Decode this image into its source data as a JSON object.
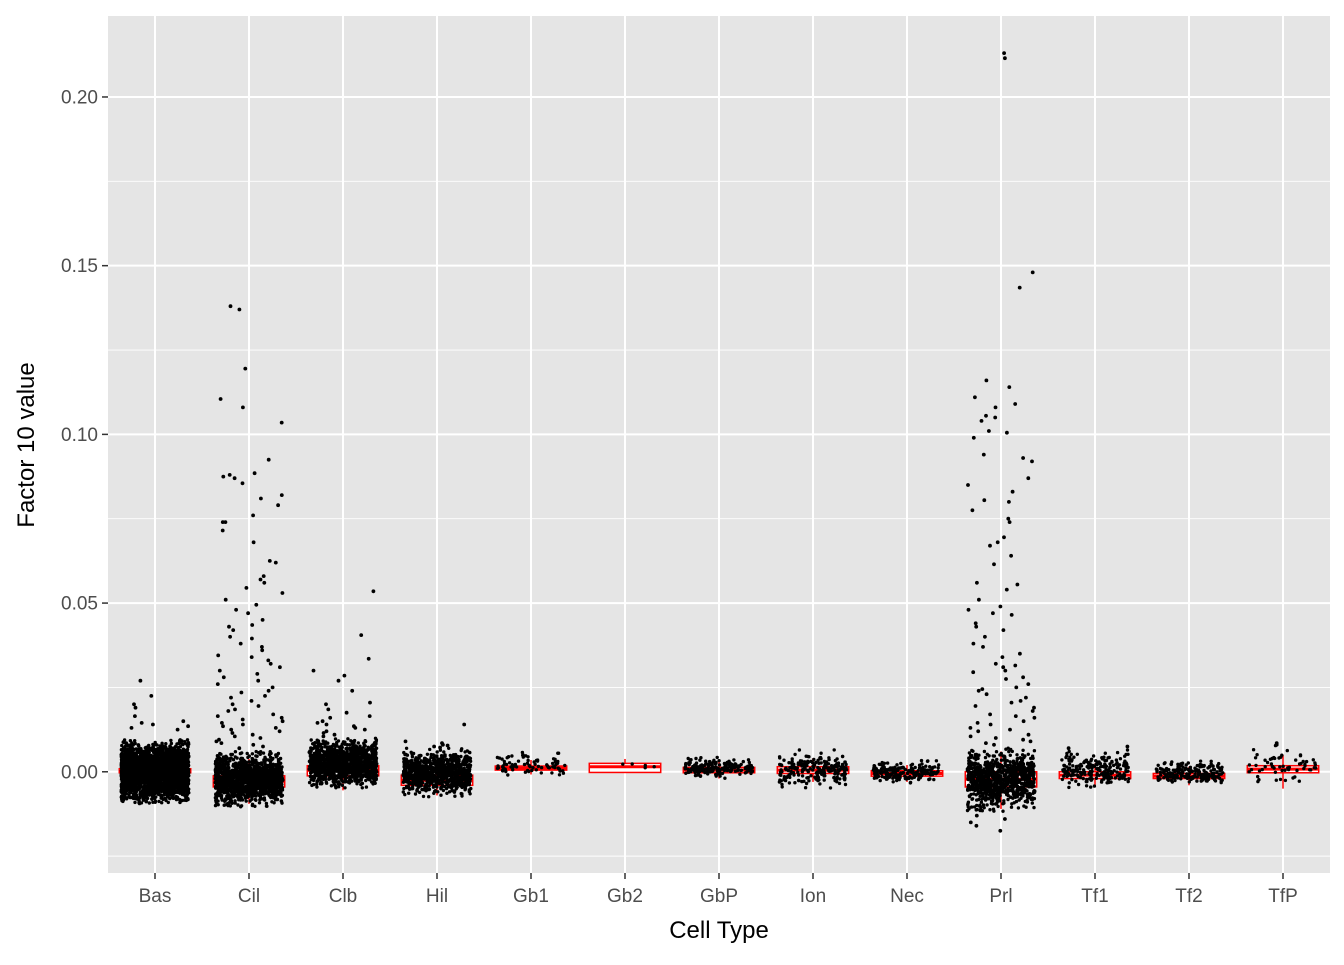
{
  "chart_data": {
    "type": "box",
    "xlabel": "Cell Type",
    "ylabel": "Factor 10 value",
    "ylim": [
      -0.03,
      0.224
    ],
    "y_ticks": [
      0.0,
      0.05,
      0.1,
      0.15,
      0.2
    ],
    "y_tick_labels": [
      "0.00",
      "0.05",
      "0.10",
      "0.15",
      "0.20"
    ],
    "grid": true,
    "panel_background": "#e5e5e5",
    "box_color": "#ff0000",
    "point_color": "#000000",
    "categories": [
      "Bas",
      "Cil",
      "Clb",
      "Hil",
      "Gb1",
      "Gb2",
      "GbP",
      "Ion",
      "Nec",
      "Prl",
      "Tf1",
      "Tf2",
      "TfP"
    ],
    "boxes": [
      {
        "name": "Bas",
        "q1": -0.0003,
        "median": 0.0003,
        "q3": 0.0009,
        "whisker_low": -0.002,
        "whisker_high": 0.0022,
        "n": 3000,
        "spread_low": -0.0095,
        "spread_high": 0.0095
      },
      {
        "name": "Cil",
        "q1": -0.0045,
        "median": -0.0028,
        "q3": -0.0012,
        "whisker_low": -0.0095,
        "whisker_high": 0.0038,
        "n": 1500,
        "spread_low": -0.0105,
        "spread_high": 0.006
      },
      {
        "name": "Clb",
        "q1": -0.0012,
        "median": 0.0004,
        "q3": 0.0018,
        "whisker_low": -0.0055,
        "whisker_high": 0.0062,
        "n": 1200,
        "spread_low": -0.005,
        "spread_high": 0.01
      },
      {
        "name": "Hil",
        "q1": -0.004,
        "median": -0.0025,
        "q3": -0.001,
        "whisker_low": -0.007,
        "whisker_high": 0.003,
        "n": 900,
        "spread_low": -0.0075,
        "spread_high": 0.007
      },
      {
        "name": "Gb1",
        "q1": 0.0005,
        "median": 0.0011,
        "q3": 0.0017,
        "whisker_low": -0.0008,
        "whisker_high": 0.0035,
        "n": 80,
        "spread_low": -0.002,
        "spread_high": 0.006
      },
      {
        "name": "Gb2",
        "q1": -0.0002,
        "median": 0.0015,
        "q3": 0.0025,
        "whisker_low": -0.0002,
        "whisker_high": 0.0038,
        "n": 5,
        "spread_low": -0.0002,
        "spread_high": 0.004
      },
      {
        "name": "GbP",
        "q1": -0.0003,
        "median": 0.0005,
        "q3": 0.0013,
        "whisker_low": -0.002,
        "whisker_high": 0.003,
        "n": 200,
        "spread_low": -0.002,
        "spread_high": 0.0045
      },
      {
        "name": "Ion",
        "q1": -0.0005,
        "median": 0.0005,
        "q3": 0.0015,
        "whisker_low": -0.003,
        "whisker_high": 0.004,
        "n": 220,
        "spread_low": -0.005,
        "spread_high": 0.0065
      },
      {
        "name": "Nec",
        "q1": -0.0013,
        "median": -0.0005,
        "q3": 0.0003,
        "whisker_low": -0.003,
        "whisker_high": 0.002,
        "n": 200,
        "spread_low": -0.0035,
        "spread_high": 0.0035
      },
      {
        "name": "Prl",
        "q1": -0.0045,
        "median": -0.0022,
        "q3": 0.0,
        "whisker_low": -0.011,
        "whisker_high": 0.006,
        "n": 900,
        "spread_low": -0.012,
        "spread_high": 0.007
      },
      {
        "name": "Tf1",
        "q1": -0.002,
        "median": -0.001,
        "q3": 0.0,
        "whisker_low": -0.0045,
        "whisker_high": 0.0025,
        "n": 220,
        "spread_low": -0.005,
        "spread_high": 0.0065
      },
      {
        "name": "Tf2",
        "q1": -0.002,
        "median": -0.0013,
        "q3": -0.0005,
        "whisker_low": -0.004,
        "whisker_high": 0.0015,
        "n": 200,
        "spread_low": -0.004,
        "spread_high": 0.0035
      },
      {
        "name": "TfP",
        "q1": -0.0003,
        "median": 0.0008,
        "q3": 0.0018,
        "whisker_low": -0.005,
        "whisker_high": 0.005,
        "n": 60,
        "spread_low": -0.005,
        "spread_high": 0.008
      }
    ],
    "outliers": [
      {
        "category": "Bas",
        "y": [
          0.027,
          0.0225,
          0.02,
          0.019,
          0.0165,
          0.015,
          0.0145,
          0.014,
          0.0135,
          0.013,
          0.0125
        ]
      },
      {
        "category": "Cil",
        "y": [
          0.138,
          0.137,
          0.1195,
          0.1105,
          0.108,
          0.1035,
          0.0925,
          0.0885,
          0.088,
          0.0875,
          0.087,
          0.0855,
          0.082,
          0.081,
          0.079,
          0.076,
          0.074,
          0.074,
          0.0715,
          0.068,
          0.062,
          0.0625,
          0.058,
          0.057,
          0.056,
          0.0545,
          0.053,
          0.051,
          0.0495,
          0.048,
          0.047,
          0.045,
          0.0435,
          0.043,
          0.042,
          0.04,
          0.0395,
          0.038,
          0.037,
          0.036,
          0.0345,
          0.034,
          0.033,
          0.032,
          0.031,
          0.03,
          0.029,
          0.028,
          0.027,
          0.026,
          0.025,
          0.024,
          0.0235,
          0.0225,
          0.022,
          0.021,
          0.02,
          0.0195,
          0.0185,
          0.018,
          0.017,
          0.0165,
          0.016,
          0.0155,
          0.015,
          0.0145,
          0.014,
          0.0135,
          0.013,
          0.0125,
          0.012,
          0.0115,
          0.011,
          0.0105,
          0.01,
          0.0095,
          0.009,
          0.0085,
          0.008,
          0.0075,
          0.007
        ]
      },
      {
        "category": "Clb",
        "y": [
          0.0535,
          0.0405,
          0.0335,
          0.03,
          0.0285,
          0.027,
          0.024,
          0.0205,
          0.02,
          0.0185,
          0.0175,
          0.0165,
          0.016,
          0.015,
          0.0145,
          0.014,
          0.0135,
          0.013,
          0.0125,
          0.012,
          0.0115,
          0.011,
          0.0105
        ]
      },
      {
        "category": "Hil",
        "y": [
          0.014,
          0.009,
          0.0085,
          0.008,
          0.0078,
          0.0075,
          0.0072
        ]
      },
      {
        "category": "Prl",
        "y": [
          0.213,
          0.2115,
          0.148,
          0.1435,
          0.116,
          0.114,
          0.111,
          0.109,
          0.108,
          0.1055,
          0.105,
          0.104,
          0.101,
          0.1005,
          0.099,
          0.094,
          0.093,
          0.092,
          0.087,
          0.085,
          0.083,
          0.0805,
          0.08,
          0.0775,
          0.075,
          0.074,
          0.0695,
          0.068,
          0.067,
          0.064,
          0.0615,
          0.056,
          0.0555,
          0.054,
          0.051,
          0.049,
          0.048,
          0.047,
          0.0465,
          0.044,
          0.043,
          0.042,
          0.04,
          0.038,
          0.037,
          0.035,
          0.034,
          0.032,
          0.0315,
          0.031,
          0.03,
          0.0295,
          0.028,
          0.0275,
          0.026,
          0.025,
          0.0245,
          0.024,
          0.023,
          0.022,
          0.021,
          0.0205,
          0.0195,
          0.019,
          0.018,
          0.017,
          0.0165,
          0.016,
          0.015,
          0.0145,
          0.014,
          0.013,
          0.0125,
          0.012,
          0.011,
          0.0105,
          0.01,
          0.0095,
          0.009,
          0.0085,
          0.008,
          -0.013,
          -0.014,
          -0.015,
          -0.016,
          -0.0175
        ]
      },
      {
        "category": "Tf1",
        "y": [
          0.0075,
          0.007
        ]
      },
      {
        "category": "TfP",
        "y": [
          0.0085,
          0.008
        ]
      }
    ]
  }
}
